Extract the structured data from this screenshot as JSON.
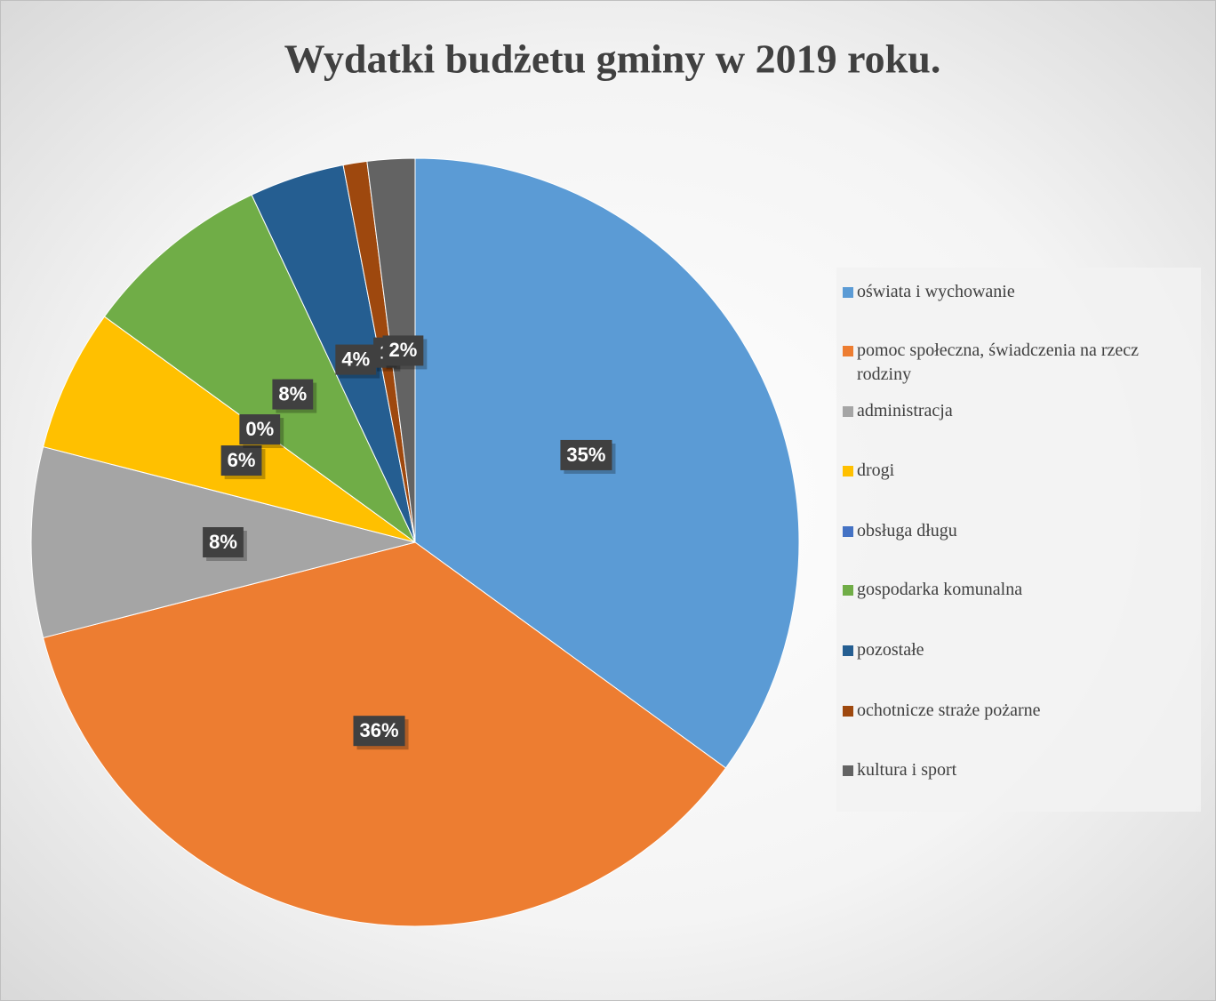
{
  "chart_data": {
    "type": "pie",
    "title": "Wydatki budżetu gminy w 2019 roku.",
    "categories": [
      "oświata i wychowanie",
      "pomoc społeczna, świadczenia na rzecz rodziny",
      "administracja",
      "drogi",
      "obsługa długu",
      "gospodarka komunalna",
      "pozostałe",
      "ochotnicze straże pożarne",
      "kultura i sport"
    ],
    "values": [
      35,
      36,
      8,
      6,
      0,
      8,
      4,
      1,
      2
    ],
    "value_labels": [
      "35%",
      "36%",
      "8%",
      "6%",
      "0%",
      "8%",
      "4%",
      "1",
      "2%"
    ],
    "colors": [
      "#5b9bd5",
      "#ed7d31",
      "#a5a5a5",
      "#ffc000",
      "#4472c4",
      "#70ad47",
      "#255e91",
      "#9e480e",
      "#636363"
    ],
    "legend": "right"
  }
}
